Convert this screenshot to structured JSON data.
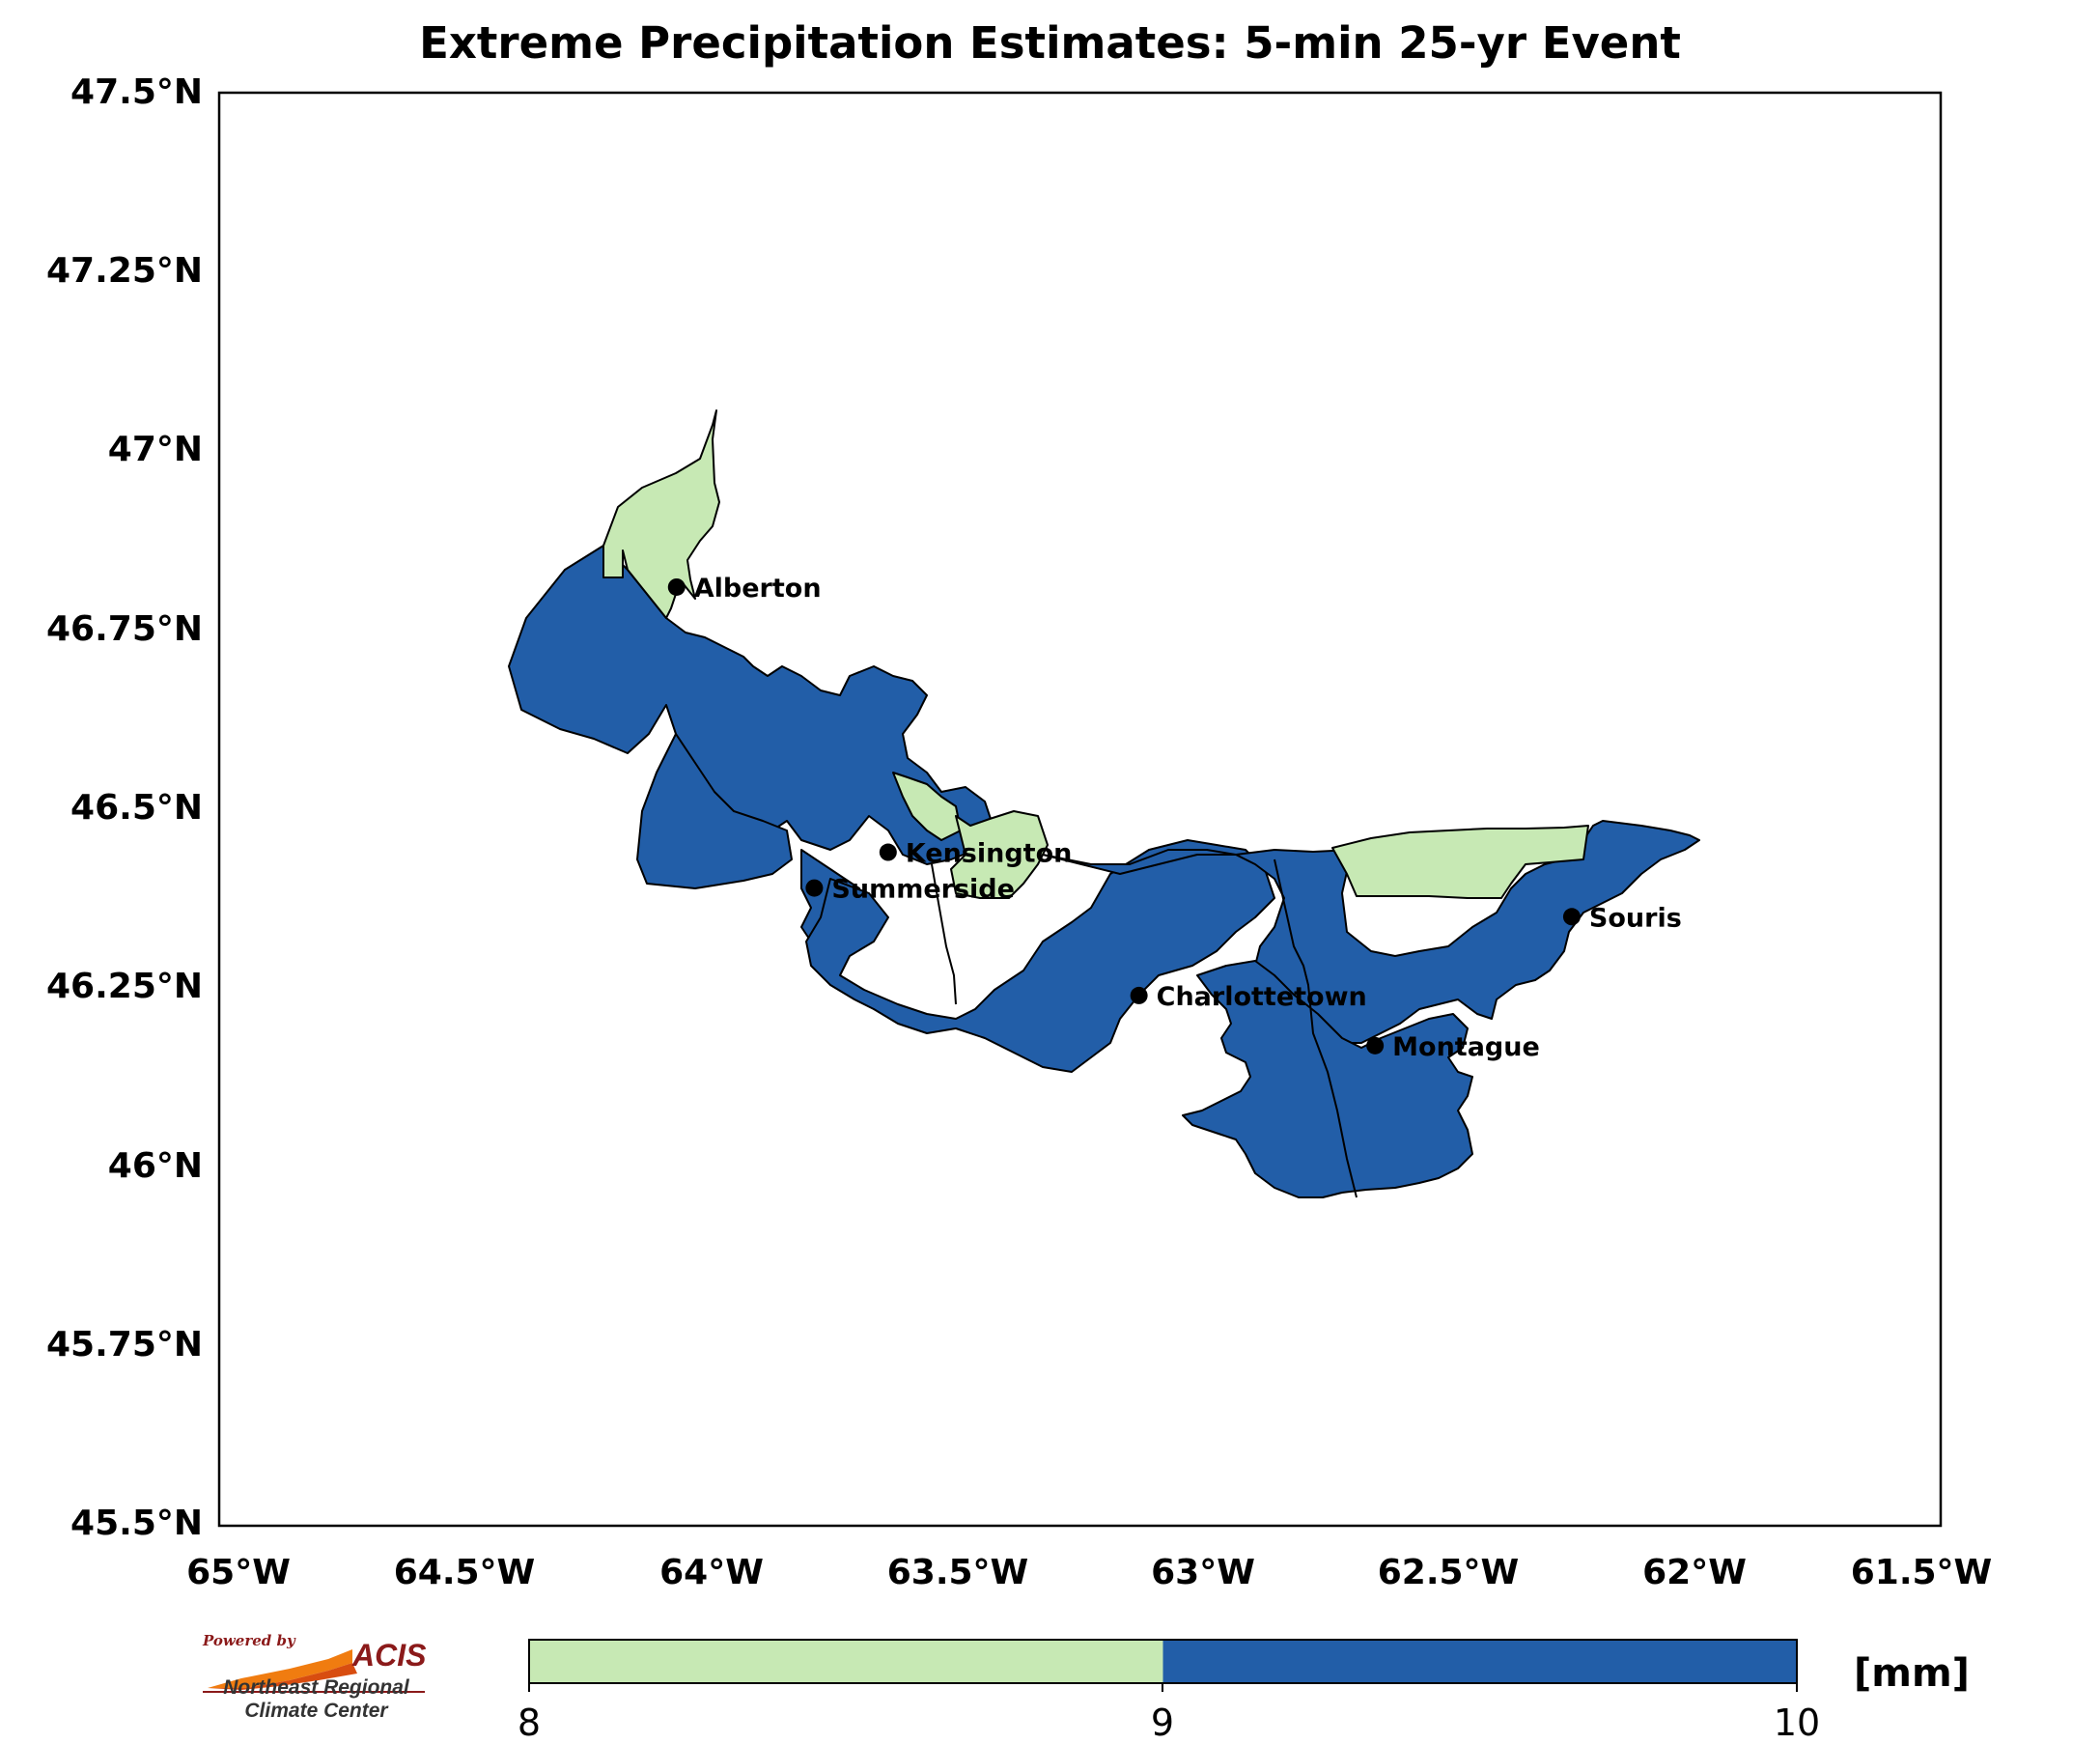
{
  "title": "Extreme Precipitation Estimates: 5-min 25-yr Event",
  "lat_ticks": [
    "47.5°N",
    "47.25°N",
    "47°N",
    "46.75°N",
    "46.5°N",
    "46.25°N",
    "46°N",
    "45.75°N",
    "45.5°N"
  ],
  "lon_ticks": [
    "65°W",
    "64.5°W",
    "64°W",
    "63.5°W",
    "63°W",
    "62.5°W",
    "62°W",
    "61.5°W"
  ],
  "extent": {
    "lon_min": -65.0,
    "lon_max": -61.5,
    "lat_min": 45.5,
    "lat_max": 47.5
  },
  "cities": [
    {
      "name": "Alberton",
      "lon": -64.07,
      "lat": 46.81
    },
    {
      "name": "Kensington",
      "lon": -63.64,
      "lat": 46.44
    },
    {
      "name": "Summerside",
      "lon": -63.79,
      "lat": 46.39
    },
    {
      "name": "Charlottetown",
      "lon": -63.13,
      "lat": 46.24
    },
    {
      "name": "Montague",
      "lon": -62.65,
      "lat": 46.17
    },
    {
      "name": "Souris",
      "lon": -62.25,
      "lat": 46.35
    }
  ],
  "colorbar": {
    "ticks": [
      "8",
      "9",
      "10"
    ],
    "unit": "[mm]",
    "segments": [
      {
        "from": 8,
        "to": 9,
        "color": "#c7e9b4"
      },
      {
        "from": 9,
        "to": 10,
        "color": "#225ea8"
      }
    ]
  },
  "colors": {
    "low": "#c7e9b4",
    "high": "#225ea8",
    "outline": "#000000"
  },
  "logo": {
    "powered_by": "Powered by",
    "brand": "ACIS",
    "line1": "Northeast Regional",
    "line2": "Climate Center"
  }
}
